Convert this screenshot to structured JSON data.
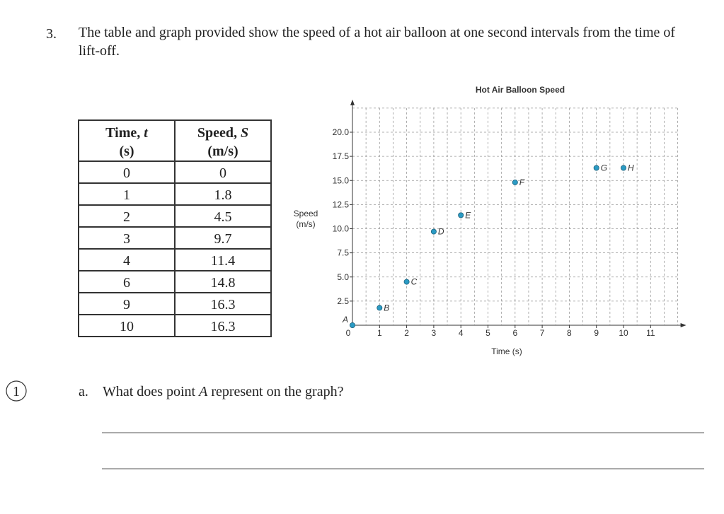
{
  "question": {
    "number": "3.",
    "text": "The table and graph provided show the speed of a hot air balloon at one second intervals from the time of lift-off."
  },
  "table": {
    "header": [
      {
        "name": "Time, ",
        "var": "t",
        "unit": "(s)"
      },
      {
        "name": "Speed, ",
        "var": "S",
        "unit": "(m/s)"
      }
    ],
    "rows": [
      [
        "0",
        "0"
      ],
      [
        "1",
        "1.8"
      ],
      [
        "2",
        "4.5"
      ],
      [
        "3",
        "9.7"
      ],
      [
        "4",
        "11.4"
      ],
      [
        "6",
        "14.8"
      ],
      [
        "9",
        "16.3"
      ],
      [
        "10",
        "16.3"
      ]
    ]
  },
  "chart_data": {
    "type": "scatter",
    "title": "Hot Air Balloon Speed",
    "x_label": "Time (s)",
    "y_label": "Speed (m/s)",
    "x": [
      0,
      1,
      2,
      3,
      4,
      6,
      9,
      10
    ],
    "values": [
      0,
      1.8,
      4.5,
      9.7,
      11.4,
      14.8,
      16.3,
      16.3
    ],
    "point_labels": [
      "A",
      "B",
      "C",
      "D",
      "E",
      "F",
      "G",
      "H"
    ],
    "color": "#2b9bc4",
    "xlim": [
      0,
      12
    ],
    "xticks": [
      0,
      1,
      2,
      3,
      4,
      5,
      6,
      7,
      8,
      9,
      10,
      11
    ],
    "ylim": [
      0,
      22.5
    ],
    "yticks": [
      2.5,
      {
        "value": 5,
        "label": "5.0"
      },
      7.5,
      {
        "value": 10,
        "label": "10.0"
      },
      12.5,
      {
        "value": 15,
        "label": "15.0"
      },
      17.5,
      {
        "value": 20,
        "label": "20.0"
      }
    ],
    "grid": true
  },
  "part_a": {
    "marker": "1",
    "letter": "a.",
    "text_before": "What does point ",
    "var": "A",
    "text_after": " represent on the graph?"
  }
}
